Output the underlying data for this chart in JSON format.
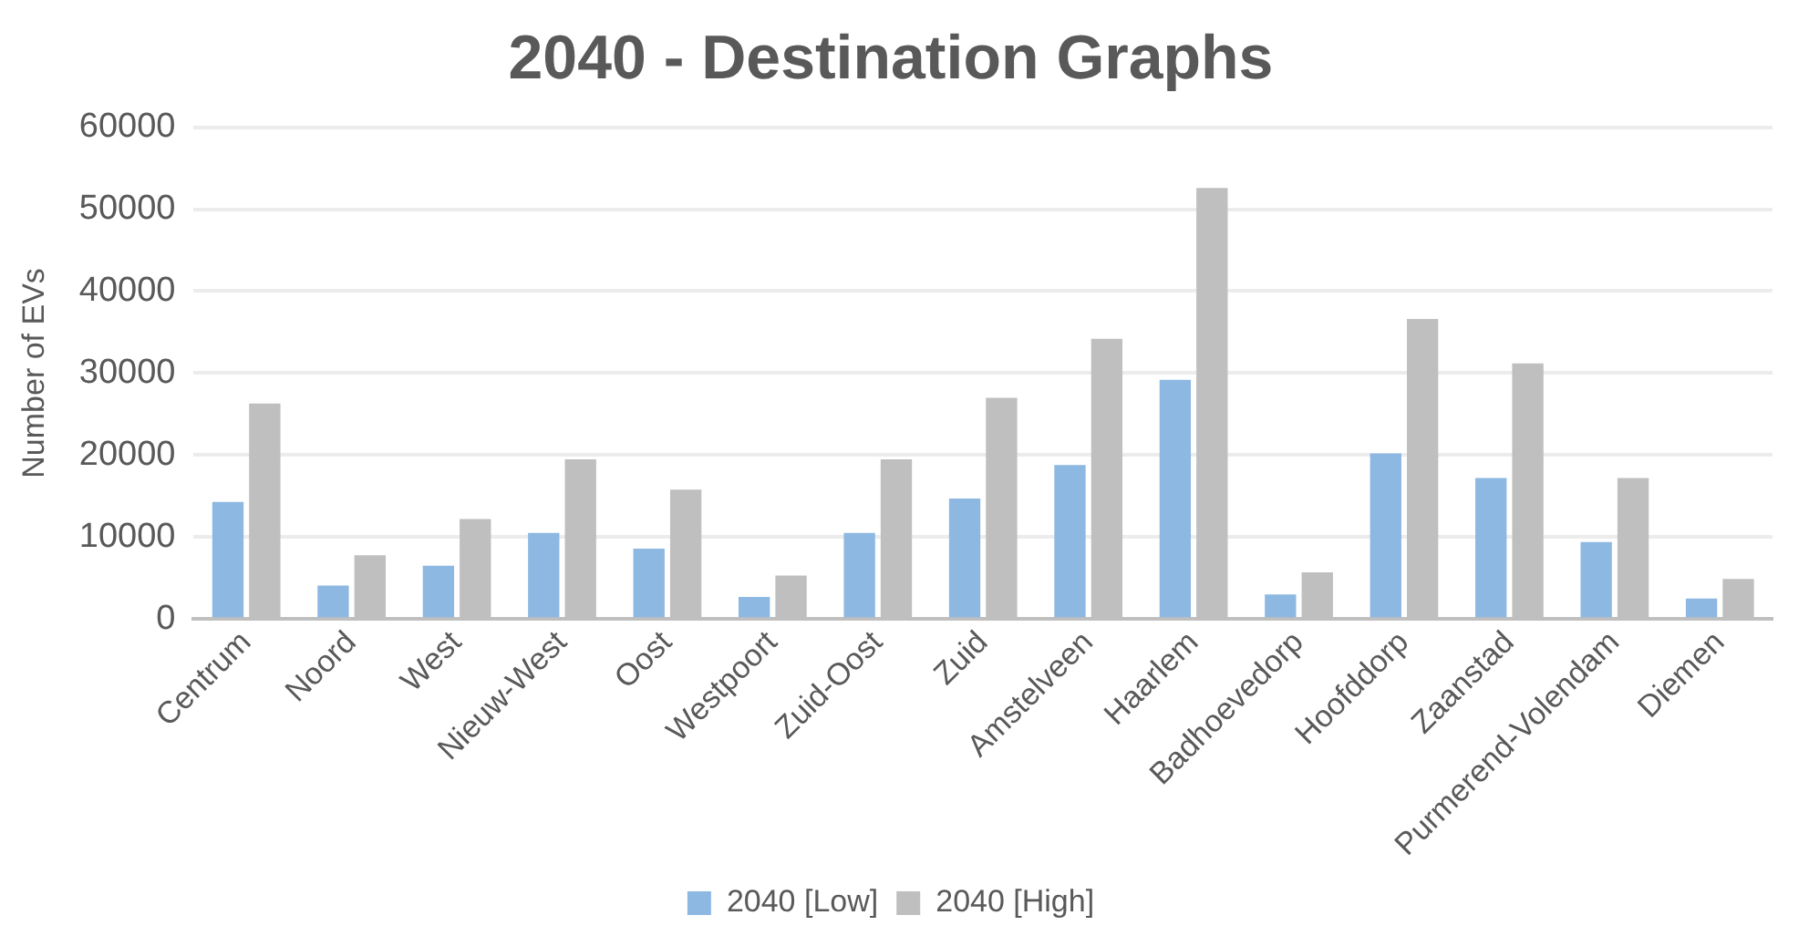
{
  "chart_data": {
    "type": "bar",
    "title": "2040 - Destination Graphs",
    "ylabel": "Number of EVs",
    "categories": [
      "Centrum",
      "Noord",
      "West",
      "Nieuw-West",
      "Oost",
      "Westpoort",
      "Zuid-Oost",
      "Zuid",
      "Amstelveen",
      "Haarlem",
      "Badhoevedorp",
      "Hoofddorp",
      "Zaanstad",
      "Purmerend-Volendam",
      "Diemen"
    ],
    "series": [
      {
        "name": "2040 [Low]",
        "color": "#8db8e2",
        "values": [
          14300,
          4100,
          6500,
          10500,
          8600,
          2700,
          10500,
          14700,
          18800,
          29200,
          3000,
          20200,
          17200,
          9400,
          2500
        ]
      },
      {
        "name": "2040 [High]",
        "color": "#bfbfbf",
        "values": [
          26300,
          7800,
          12200,
          19500,
          15800,
          5300,
          19500,
          27000,
          34200,
          52600,
          5700,
          36600,
          31200,
          17200,
          4900
        ]
      }
    ],
    "ylim": [
      0,
      60000
    ],
    "yticks": [
      0,
      10000,
      20000,
      30000,
      40000,
      50000,
      60000
    ],
    "grid": "y",
    "legend": "bottom"
  }
}
